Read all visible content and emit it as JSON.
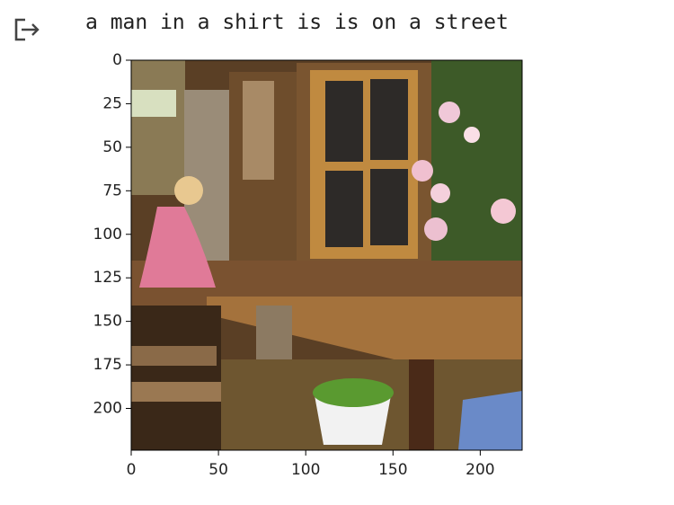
{
  "output": {
    "caption": "a man in a shirt is is on a street",
    "image": {
      "xlim": [
        0,
        224
      ],
      "ylim": [
        224,
        0
      ],
      "xticks": [
        0,
        50,
        100,
        150,
        200
      ],
      "yticks": [
        0,
        25,
        50,
        75,
        100,
        125,
        150,
        175,
        200
      ]
    }
  }
}
